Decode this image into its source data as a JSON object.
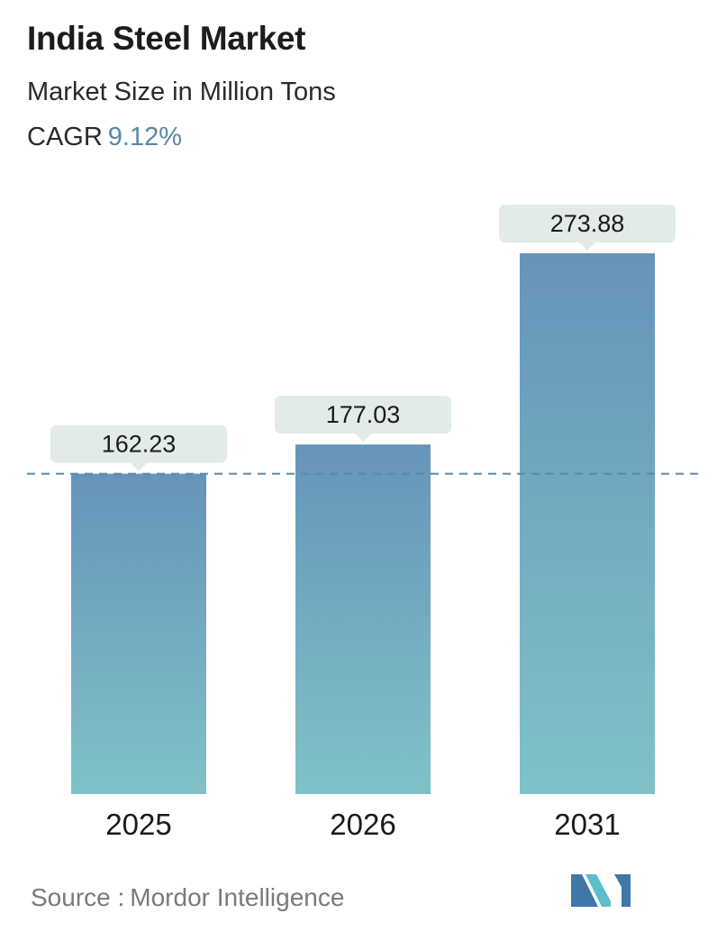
{
  "header": {
    "title": "India Steel Market",
    "subtitle": "Market Size in Million Tons",
    "cagr_label": "CAGR",
    "cagr_value": "9.12%"
  },
  "colors": {
    "bar_top": "#6694b9",
    "bar_bottom": "#80c2c8",
    "label_bg": "#e2eaea",
    "dashed_line": "#5b87a8",
    "cagr_value": "#5b87a8",
    "logo_dark": "#3f77a8",
    "logo_light": "#5cbfc9"
  },
  "footer": {
    "source_label": "Source :",
    "source_name": "Mordor Intelligence",
    "logo_icon": "mordor-intelligence-logo-icon"
  },
  "chart_data": {
    "type": "bar",
    "categories": [
      "2025",
      "2026",
      "2031"
    ],
    "values": [
      162.23,
      177.03,
      273.88
    ],
    "value_labels": [
      "162.23",
      "177.03",
      "273.88"
    ],
    "reference_line": 162.23,
    "title": "India Steel Market",
    "xlabel": "",
    "ylabel": "Market Size in Million Tons",
    "ylim": [
      0,
      273.88
    ],
    "grid": false,
    "legend": "none"
  }
}
